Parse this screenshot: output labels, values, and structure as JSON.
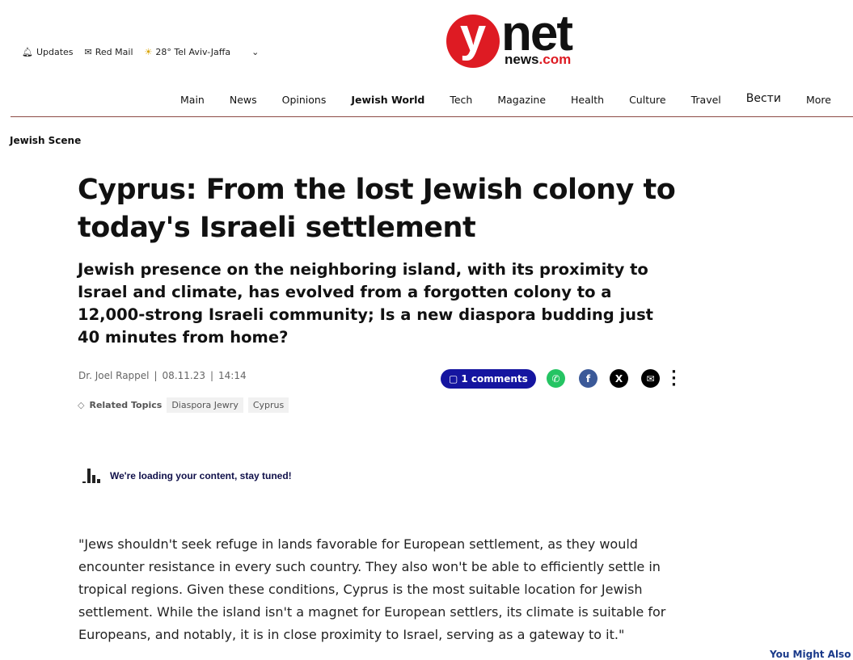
{
  "util": {
    "updates": "Updates",
    "mail": "Red Mail",
    "weather": "28° Tel Aviv-Jaffa"
  },
  "logo": {
    "y": "y",
    "net": "net",
    "news": "news",
    "com": ".com"
  },
  "nav": [
    "Main",
    "News",
    "Opinions",
    "Jewish World",
    "Tech",
    "Magazine",
    "Health",
    "Culture",
    "Travel",
    "Вести",
    "More"
  ],
  "section": "Jewish Scene",
  "article": {
    "title": "Cyprus: From the lost Jewish colony to today's Israeli settlement",
    "subtitle": "Jewish presence on the neighboring island, with its proximity to Israel and climate, has evolved from a forgotten colony to a 12,000-strong Israeli community; Is a new diaspora budding just 40 minutes from home?",
    "author": "Dr. Joel Rappel",
    "date": "08.11.23",
    "time": "14:14",
    "comments": "1 comments",
    "related_label": "Related Topics",
    "tags": [
      "Diaspora Jewry",
      "Cyprus"
    ],
    "loading": "We're loading your content, stay tuned!",
    "quote": "\"Jews shouldn't seek refuge in lands favorable for European settlement, as they would encounter resistance in every such country. They also won't be able to efficiently settle in tropical regions. Given these conditions, Cyprus is the most suitable location for Jewish settlement. While the island isn't a magnet for European settlers, its climate is suitable for Europeans, and notably, it is in close proximity to Israel, serving as a gateway to it.\""
  },
  "sidebar": {
    "you_might_also": "You Might Also L"
  },
  "colors": {
    "brand": "#de1b23",
    "comments": "#1515a0",
    "whatsapp": "#25c463",
    "facebook": "#3b5998"
  }
}
